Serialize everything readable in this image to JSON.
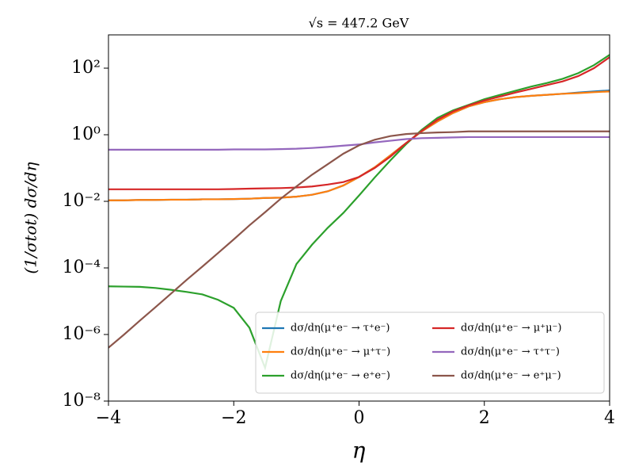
{
  "chart_data": {
    "type": "line",
    "title": "√s = 447.2 GeV",
    "xlabel": "η",
    "ylabel": "(1/σtot) dσ/dη",
    "log_y": true,
    "legend": "lower right",
    "xlim": [
      -4,
      4
    ],
    "xticks": [
      {
        "value": -4,
        "label": "−4"
      },
      {
        "value": -2,
        "label": "−2"
      },
      0,
      2,
      4
    ],
    "ylim": [
      1e-08,
      1000
    ],
    "yticks": [
      {
        "value": 1e-08,
        "label": "10⁻⁸"
      },
      {
        "value": 1e-06,
        "label": "10⁻⁶"
      },
      {
        "value": 0.0001,
        "label": "10⁻⁴"
      },
      {
        "value": 0.01,
        "label": "10⁻²"
      },
      {
        "value": 1,
        "label": "10⁰"
      },
      {
        "value": 100,
        "label": "10²"
      }
    ],
    "x": [
      -4,
      -3.75,
      -3.5,
      -3.25,
      -3,
      -2.75,
      -2.5,
      -2.25,
      -2,
      -1.75,
      -1.5,
      -1.25,
      -1,
      -0.75,
      -0.5,
      -0.25,
      0,
      0.25,
      0.5,
      0.75,
      1,
      1.25,
      1.5,
      1.75,
      2,
      2.25,
      2.5,
      2.75,
      3,
      3.25,
      3.5,
      3.75,
      4
    ],
    "series": [
      {
        "name": "dσ/dη(μ⁺e⁻ → τ⁺e⁻)",
        "color": "#1f77b4",
        "values": [
          0.0107,
          0.0107,
          0.011,
          0.011,
          0.0112,
          0.0112,
          0.0115,
          0.0115,
          0.0117,
          0.012,
          0.0126,
          0.0129,
          0.0138,
          0.0158,
          0.02,
          0.03,
          0.054,
          0.105,
          0.24,
          0.56,
          1.26,
          2.5,
          4.5,
          7.1,
          9.5,
          11.7,
          13.5,
          14.8,
          15.8,
          17,
          18.5,
          20,
          21.5
        ]
      },
      {
        "name": "dσ/dη(μ⁺e⁻ → μ⁺τ⁻)",
        "color": "#ff7f0e",
        "values": [
          0.0107,
          0.0107,
          0.011,
          0.011,
          0.0112,
          0.0112,
          0.0115,
          0.0115,
          0.0117,
          0.012,
          0.0126,
          0.0129,
          0.0138,
          0.0158,
          0.02,
          0.03,
          0.054,
          0.105,
          0.24,
          0.56,
          1.26,
          2.5,
          4.5,
          7.1,
          9.5,
          11.7,
          13.5,
          14.8,
          15.8,
          17,
          17.8,
          19,
          20
        ]
      },
      {
        "name": "dσ/dη(μ⁺e⁻ → e⁺e⁻)",
        "color": "#2ca02c",
        "values": [
          2.8e-05,
          2.75e-05,
          2.7e-05,
          2.5e-05,
          2.2e-05,
          1.9e-05,
          1.6e-05,
          1.1e-05,
          6.3e-06,
          1.6e-06,
          1e-07,
          1e-05,
          0.00013,
          0.0005,
          0.0016,
          0.0045,
          0.015,
          0.052,
          0.17,
          0.52,
          1.4,
          3.2,
          5.4,
          7.9,
          11.7,
          15.8,
          21,
          28,
          36,
          48,
          71,
          123,
          251
        ]
      },
      {
        "name": "dσ/dη(μ⁺e⁻ → μ⁺μ⁻)",
        "color": "#d62728",
        "values": [
          0.023,
          0.023,
          0.023,
          0.023,
          0.023,
          0.023,
          0.023,
          0.023,
          0.0234,
          0.024,
          0.0245,
          0.025,
          0.026,
          0.028,
          0.032,
          0.038,
          0.054,
          0.1,
          0.22,
          0.56,
          1.3,
          2.8,
          5,
          7.6,
          10.7,
          14,
          18.6,
          24,
          31,
          40,
          58,
          100,
          214
        ]
      },
      {
        "name": "dσ/dη(μ⁺e⁻ → τ⁺τ⁻)",
        "color": "#9467bd",
        "values": [
          0.355,
          0.355,
          0.355,
          0.355,
          0.355,
          0.355,
          0.355,
          0.355,
          0.363,
          0.363,
          0.363,
          0.37,
          0.38,
          0.4,
          0.43,
          0.47,
          0.51,
          0.59,
          0.66,
          0.74,
          0.79,
          0.81,
          0.83,
          0.85,
          0.85,
          0.85,
          0.85,
          0.85,
          0.85,
          0.85,
          0.85,
          0.85,
          0.85
        ]
      },
      {
        "name": "dσ/dη(μ⁺e⁻ → e⁺μ⁻)",
        "color": "#8c564b",
        "values": [
          4e-07,
          1e-06,
          2.6e-06,
          6.6e-06,
          1.7e-05,
          4.4e-05,
          0.00011,
          0.00028,
          0.00072,
          0.0019,
          0.0047,
          0.012,
          0.028,
          0.063,
          0.13,
          0.27,
          0.48,
          0.71,
          0.91,
          1.05,
          1.12,
          1.17,
          1.2,
          1.26,
          1.26,
          1.26,
          1.26,
          1.26,
          1.26,
          1.26,
          1.26,
          1.26,
          1.26
        ]
      }
    ]
  }
}
